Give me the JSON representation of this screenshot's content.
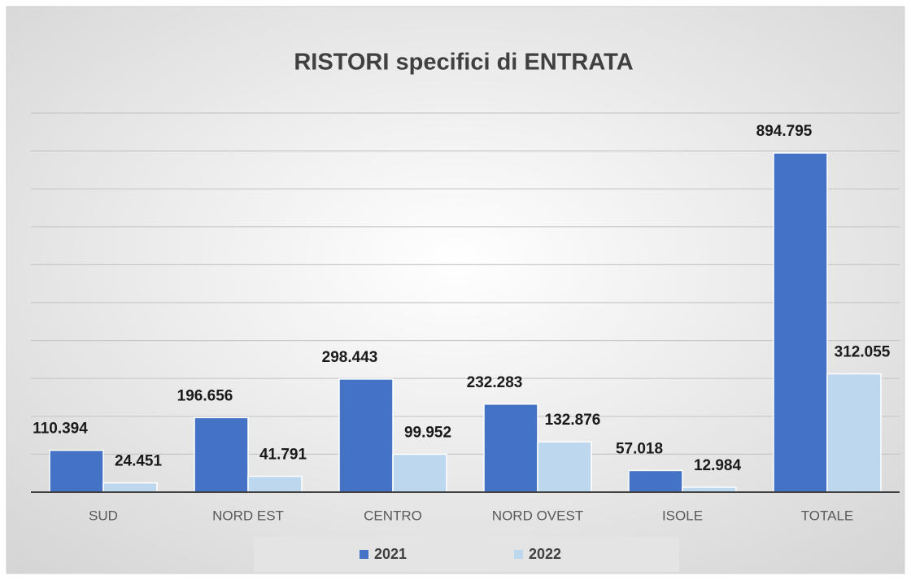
{
  "chart_data": {
    "type": "bar",
    "title": "RISTORI specifici di ENTRATA",
    "categories": [
      "SUD",
      "NORD EST",
      "CENTRO",
      "NORD OVEST",
      "ISOLE",
      "TOTALE"
    ],
    "series": [
      {
        "name": "2021",
        "color": "#4472c4",
        "values": [
          110394,
          196656,
          298443,
          232283,
          57018,
          894795
        ],
        "value_labels": [
          "110.394",
          "196.656",
          "298.443",
          "232.283",
          "57.018",
          "894.795"
        ]
      },
      {
        "name": "2022",
        "color": "#bdd7ee",
        "values": [
          24451,
          41791,
          99952,
          132876,
          12984,
          312055
        ],
        "value_labels": [
          "24.451",
          "41.791",
          "99.952",
          "132.876",
          "12.984",
          "312.055"
        ]
      }
    ],
    "ylim": [
      0,
      1000000
    ],
    "yticks": [
      0,
      100000,
      200000,
      300000,
      400000,
      500000,
      600000,
      700000,
      800000,
      900000,
      1000000
    ],
    "grid": true,
    "legend": "bottom"
  }
}
